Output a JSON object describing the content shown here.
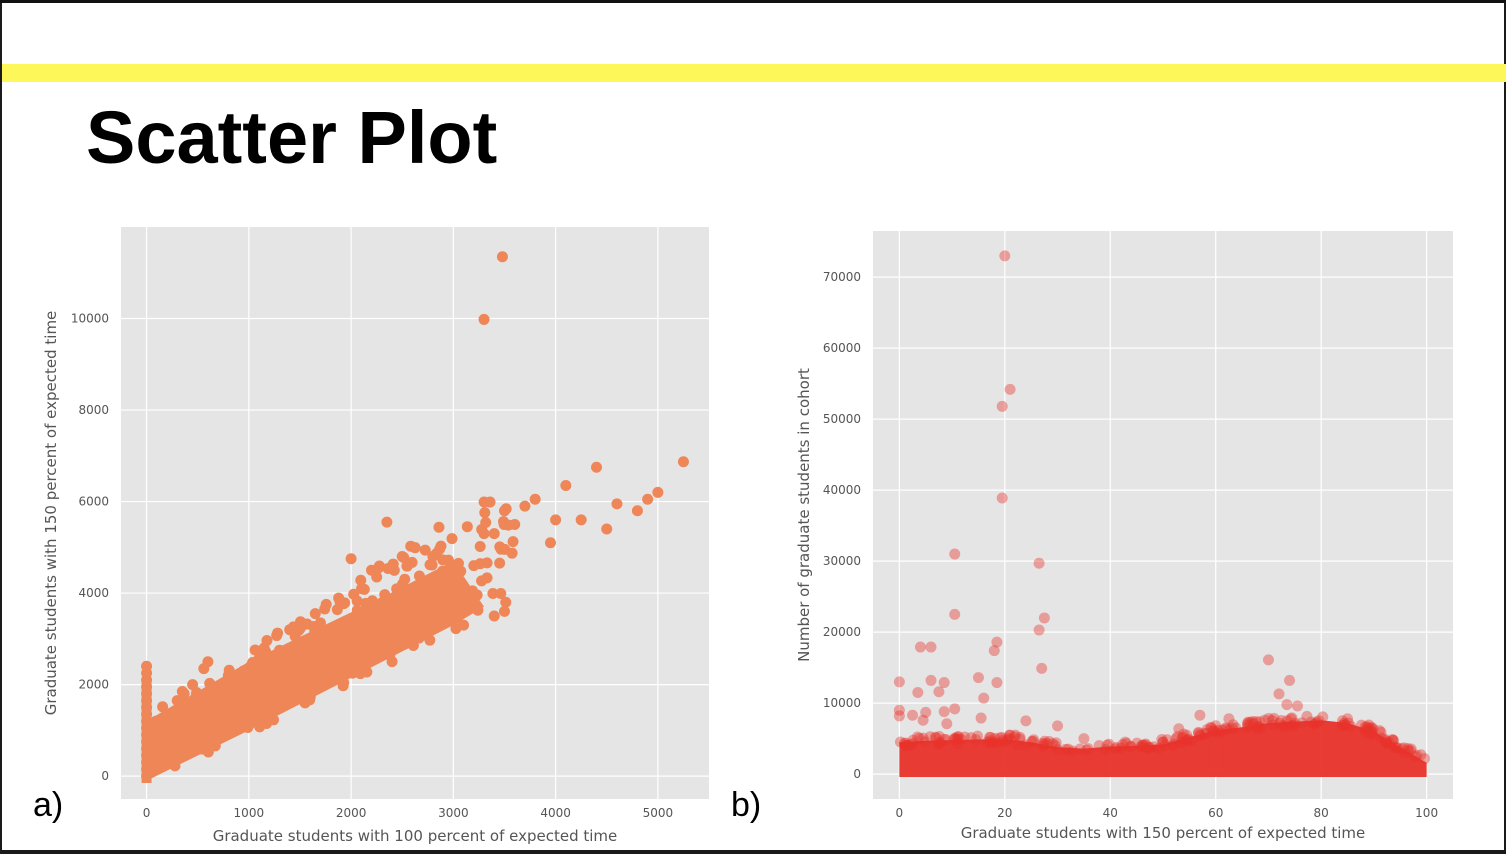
{
  "slide": {
    "title": "Scatter Plot",
    "accent_color": "#fdf75a"
  },
  "panels": [
    {
      "label": "a)"
    },
    {
      "label": "b)"
    }
  ],
  "chart_data": [
    {
      "type": "scatter",
      "title": "",
      "xlabel": "Graduate students with 100 percent of expected time",
      "ylabel": "Graduate students with 150 percent of expected time",
      "xlim": [
        -250,
        5500
      ],
      "ylim": [
        -500,
        12000
      ],
      "xticks": [
        0,
        1000,
        2000,
        3000,
        4000,
        5000
      ],
      "yticks": [
        0,
        2000,
        4000,
        6000,
        8000,
        10000
      ],
      "grid": true,
      "color": "#ee8657",
      "background": "#e5e5e5",
      "trend": {
        "x_range": [
          0,
          3000
        ],
        "y_at_x": "approximately 1.25x to 1.65x of x"
      },
      "points": [
        [
          3480,
          11350
        ],
        [
          3300,
          9980
        ],
        [
          5250,
          6870
        ],
        [
          4400,
          6750
        ],
        [
          5000,
          6200
        ],
        [
          4900,
          6050
        ],
        [
          4800,
          5800
        ],
        [
          4600,
          5950
        ],
        [
          4500,
          5400
        ],
        [
          4100,
          6350
        ],
        [
          4250,
          5600
        ],
        [
          4000,
          5600
        ],
        [
          3950,
          5100
        ],
        [
          3800,
          6050
        ],
        [
          3700,
          5900
        ],
        [
          3600,
          5500
        ],
        [
          3500,
          5800
        ],
        [
          3400,
          5300
        ],
        [
          3300,
          5300
        ],
        [
          3200,
          4600
        ],
        [
          2350,
          5550
        ],
        [
          2000,
          4750
        ],
        [
          2200,
          4500
        ],
        [
          2500,
          4800
        ],
        [
          2800,
          4800
        ],
        [
          3050,
          4650
        ],
        [
          3400,
          3500
        ],
        [
          3500,
          3600
        ],
        [
          3100,
          3300
        ],
        [
          1650,
          3550
        ],
        [
          1700,
          3350
        ],
        [
          1400,
          3200
        ],
        [
          1700,
          3100
        ],
        [
          1150,
          2800
        ],
        [
          1300,
          2750
        ],
        [
          1500,
          2700
        ],
        [
          1800,
          2500
        ],
        [
          1200,
          2350
        ],
        [
          950,
          2300
        ],
        [
          800,
          2200
        ],
        [
          600,
          2500
        ],
        [
          560,
          2350
        ],
        [
          450,
          2000
        ],
        [
          350,
          1850
        ],
        [
          300,
          1650
        ],
        [
          0,
          2400
        ],
        [
          0,
          2250
        ],
        [
          0,
          2100
        ],
        [
          0,
          1950
        ],
        [
          0,
          1800
        ],
        [
          0,
          1650
        ],
        [
          0,
          1500
        ],
        [
          0,
          1350
        ],
        [
          0,
          1200
        ],
        [
          0,
          1050
        ],
        [
          0,
          900
        ],
        [
          0,
          750
        ],
        [
          0,
          600
        ],
        [
          0,
          450
        ],
        [
          0,
          300
        ],
        [
          0,
          150
        ],
        [
          0,
          0
        ]
      ]
    },
    {
      "type": "scatter",
      "title": "",
      "xlabel": "Graduate students with 150 percent of expected time",
      "ylabel": "Number of graduate students in cohort",
      "xlim": [
        -5,
        105
      ],
      "ylim": [
        -3500,
        76500
      ],
      "xticks": [
        0,
        20,
        40,
        60,
        80,
        100
      ],
      "yticks": [
        0,
        10000,
        20000,
        30000,
        40000,
        50000,
        60000,
        70000
      ],
      "grid": true,
      "color": "#e8322a",
      "background": "#e5e5e5",
      "band": [
        [
          0,
          4500
        ],
        [
          5,
          4700
        ],
        [
          10,
          4800
        ],
        [
          15,
          4900
        ],
        [
          20,
          4900
        ],
        [
          25,
          4500
        ],
        [
          30,
          3800
        ],
        [
          35,
          3600
        ],
        [
          40,
          3900
        ],
        [
          45,
          4000
        ],
        [
          50,
          4200
        ],
        [
          55,
          5200
        ],
        [
          60,
          6200
        ],
        [
          65,
          6600
        ],
        [
          70,
          7200
        ],
        [
          75,
          7400
        ],
        [
          80,
          7600
        ],
        [
          85,
          7200
        ],
        [
          90,
          6000
        ],
        [
          95,
          3800
        ],
        [
          100,
          1600
        ]
      ],
      "points": [
        [
          20,
          73000
        ],
        [
          21,
          54200
        ],
        [
          19.5,
          51800
        ],
        [
          19.5,
          38900
        ],
        [
          10.5,
          31000
        ],
        [
          26.5,
          29700
        ],
        [
          10.5,
          22500
        ],
        [
          27.5,
          22000
        ],
        [
          26.5,
          20300
        ],
        [
          18.5,
          18600
        ],
        [
          18,
          17400
        ],
        [
          4,
          17900
        ],
        [
          6,
          17900
        ],
        [
          70,
          16100
        ],
        [
          27,
          14900
        ],
        [
          0,
          13000
        ],
        [
          6,
          13200
        ],
        [
          8.5,
          12900
        ],
        [
          15,
          13600
        ],
        [
          18.5,
          12900
        ],
        [
          74,
          13200
        ],
        [
          72,
          11300
        ],
        [
          16,
          10700
        ],
        [
          73.5,
          9800
        ],
        [
          75.5,
          9600
        ],
        [
          0,
          9000
        ],
        [
          0,
          8200
        ],
        [
          2.5,
          8300
        ],
        [
          5,
          8700
        ],
        [
          4.5,
          7600
        ],
        [
          8.5,
          8800
        ],
        [
          10.5,
          9200
        ],
        [
          9,
          7100
        ],
        [
          7.5,
          11600
        ],
        [
          3.5,
          11500
        ],
        [
          24,
          7500
        ],
        [
          30,
          6800
        ],
        [
          57,
          8300
        ],
        [
          62.5,
          7800
        ],
        [
          85,
          7800
        ],
        [
          15.5,
          7900
        ],
        [
          22,
          5500
        ],
        [
          35,
          5000
        ],
        [
          53,
          6400
        ],
        [
          68,
          6700
        ]
      ]
    }
  ]
}
